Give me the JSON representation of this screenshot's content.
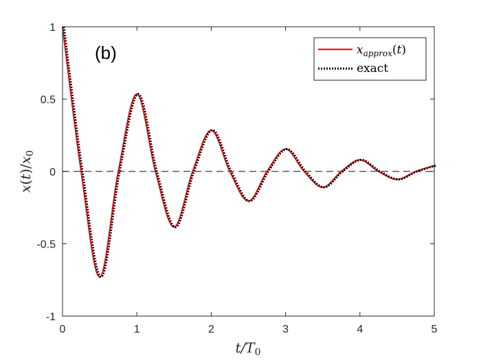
{
  "chart_data": {
    "type": "line",
    "panel_label": "(b)",
    "xlabel": "t/T0",
    "ylabel": "x(t)/x0",
    "xlim": [
      0,
      5
    ],
    "ylim": [
      -1,
      1
    ],
    "xticks": [
      0,
      1,
      2,
      3,
      4,
      5
    ],
    "xtick_labels": [
      "0",
      "1",
      "2",
      "3",
      "4",
      "5"
    ],
    "yticks": [
      -1,
      -0.5,
      0,
      0.5,
      1
    ],
    "ytick_labels": [
      "-1",
      "-0.5",
      "0",
      "0.5",
      "1"
    ],
    "grid": false,
    "legend_position": "top-right",
    "reference_line": {
      "y": 0,
      "style": "dashed",
      "color": "#595959"
    },
    "series": [
      {
        "name": "x_approx(t)",
        "color": "#e31a1c",
        "style": "solid",
        "x": [
          0,
          0.25,
          0.5,
          0.75,
          1.0,
          1.25,
          1.5,
          1.75,
          2.0,
          2.25,
          2.5,
          2.75,
          3.0,
          3.25,
          3.5,
          3.75,
          4.0,
          4.25,
          4.5,
          4.75,
          5.0
        ],
        "y": [
          1.0,
          0.0,
          -0.73,
          0.0,
          0.535,
          0.0,
          -0.385,
          0.0,
          0.285,
          0.0,
          -0.205,
          0.0,
          0.155,
          0.0,
          -0.11,
          0.0,
          0.08,
          0.0,
          -0.055,
          0.0,
          0.04
        ]
      },
      {
        "name": "exact",
        "color": "#000000",
        "style": "dotted",
        "x": [
          0,
          0.25,
          0.5,
          0.75,
          1.0,
          1.25,
          1.5,
          1.75,
          2.0,
          2.25,
          2.5,
          2.75,
          3.0,
          3.25,
          3.5,
          3.75,
          4.0,
          4.25,
          4.5,
          4.75,
          5.0
        ],
        "y": [
          1.0,
          0.0,
          -0.73,
          0.0,
          0.535,
          0.0,
          -0.385,
          0.0,
          0.285,
          0.0,
          -0.205,
          0.0,
          0.155,
          0.0,
          -0.11,
          0.0,
          0.08,
          0.0,
          -0.055,
          0.0,
          0.04
        ]
      }
    ]
  }
}
